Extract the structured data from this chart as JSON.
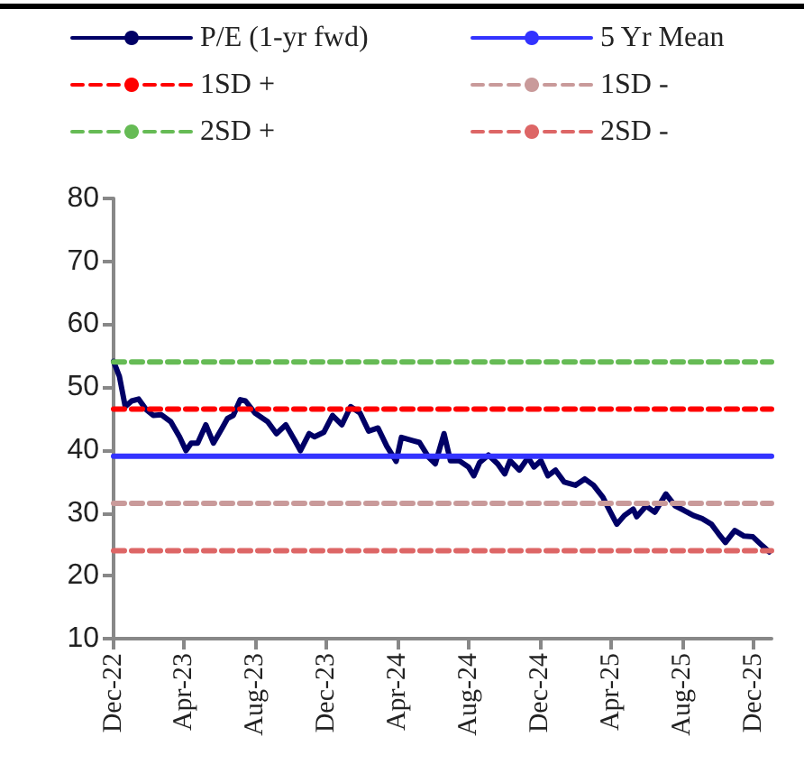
{
  "chart_data": {
    "type": "line",
    "legend": "top",
    "marker": "none",
    "grid": false,
    "xlim": [
      "2022-12-01",
      "2026-01-01"
    ],
    "xticks": [
      {
        "value": "2022-12-01",
        "label": "Dec-22"
      },
      {
        "value": "2023-04-01",
        "label": "Apr-23"
      },
      {
        "value": "2023-08-01",
        "label": "Aug-23"
      },
      {
        "value": "2023-12-01",
        "label": "Dec-23"
      },
      {
        "value": "2024-04-01",
        "label": "Apr-24"
      },
      {
        "value": "2024-08-01",
        "label": "Aug-24"
      },
      {
        "value": "2024-12-01",
        "label": "Dec-24"
      },
      {
        "value": "2025-04-01",
        "label": "Apr-25"
      },
      {
        "value": "2025-08-01",
        "label": "Aug-25"
      },
      {
        "value": "2025-12-01",
        "label": "Dec-25"
      }
    ],
    "ylim": [
      10,
      80
    ],
    "yticks": [
      10,
      20,
      30,
      40,
      50,
      60,
      70,
      80
    ],
    "series": [
      {
        "name": "P/E (1-yr fwd)",
        "color": "#000066",
        "line_style": "solid",
        "x": [
          "2022-12-01",
          "2022-12-11",
          "2022-12-21",
          "2023-01-01",
          "2023-01-13",
          "2023-01-26",
          "2023-02-07",
          "2023-02-21",
          "2023-03-09",
          "2023-03-24",
          "2023-04-04",
          "2023-04-13",
          "2023-04-24",
          "2023-05-08",
          "2023-05-21",
          "2023-06-05",
          "2023-06-14",
          "2023-06-24",
          "2023-07-06",
          "2023-07-15",
          "2023-07-31",
          "2023-08-22",
          "2023-09-06",
          "2023-09-22",
          "2023-10-07",
          "2023-10-17",
          "2023-11-01",
          "2023-11-10",
          "2023-11-26",
          "2023-12-11",
          "2023-12-27",
          "2024-01-11",
          "2024-01-27",
          "2024-02-11",
          "2024-02-27",
          "2024-03-13",
          "2024-03-29",
          "2024-04-07",
          "2024-04-26",
          "2024-05-08",
          "2024-05-24",
          "2024-06-04",
          "2024-06-19",
          "2024-06-30",
          "2024-07-15",
          "2024-07-31",
          "2024-08-09",
          "2024-08-19",
          "2024-09-03",
          "2024-09-19",
          "2024-10-01",
          "2024-10-10",
          "2024-10-26",
          "2024-11-10",
          "2024-11-20",
          "2024-12-02",
          "2024-12-14",
          "2024-12-27",
          "2025-01-11",
          "2025-01-30",
          "2025-02-15",
          "2025-03-02",
          "2025-03-18",
          "2025-03-30",
          "2025-04-11",
          "2025-04-24",
          "2025-05-09",
          "2025-05-15",
          "2025-05-31",
          "2025-06-15",
          "2025-07-04",
          "2025-07-20",
          "2025-08-04",
          "2025-08-20",
          "2025-09-04",
          "2025-09-20",
          "2025-10-02",
          "2025-10-14",
          "2025-10-30",
          "2025-11-15",
          "2025-11-30",
          "2025-12-16",
          "2025-12-28"
        ],
        "values": [
          54.1,
          51.7,
          46.9,
          47.8,
          48.1,
          46.4,
          45.5,
          45.6,
          44.5,
          42.1,
          39.9,
          41.1,
          41.1,
          44.0,
          41.1,
          43.5,
          45.0,
          45.5,
          48.0,
          47.8,
          45.9,
          44.5,
          42.6,
          44.0,
          41.6,
          39.9,
          42.6,
          42.1,
          42.8,
          45.5,
          44.0,
          46.9,
          45.9,
          43.0,
          43.5,
          40.6,
          38.2,
          42.0,
          41.5,
          41.2,
          38.8,
          37.8,
          42.6,
          38.3,
          38.3,
          37.3,
          35.9,
          38.0,
          39.2,
          37.8,
          36.2,
          38.3,
          36.8,
          38.8,
          37.3,
          38.3,
          35.9,
          36.8,
          34.9,
          34.4,
          35.4,
          34.4,
          32.5,
          30.3,
          28.2,
          29.6,
          30.6,
          29.4,
          31.1,
          30.1,
          33.0,
          31.1,
          30.4,
          29.6,
          29.1,
          28.2,
          26.7,
          25.3,
          27.2,
          26.3,
          26.2,
          24.8,
          23.8
        ]
      },
      {
        "name": "5 Yr Mean",
        "color": "#3333ff",
        "line_style": "solid",
        "x": [
          "2022-12-01",
          "2026-01-01"
        ],
        "values": [
          39,
          39
        ]
      },
      {
        "name": "1SD +",
        "color": "#ff0000",
        "line_style": "dashed",
        "x": [
          "2022-12-01",
          "2026-01-01"
        ],
        "values": [
          46.5,
          46.5
        ]
      },
      {
        "name": "1SD -",
        "color": "#c99a9a",
        "line_style": "dashed",
        "x": [
          "2022-12-01",
          "2026-01-01"
        ],
        "values": [
          31.5,
          31.5
        ]
      },
      {
        "name": "2SD +",
        "color": "#66bb55",
        "line_style": "dashed",
        "x": [
          "2022-12-01",
          "2026-01-01"
        ],
        "values": [
          54,
          54
        ]
      },
      {
        "name": "2SD -",
        "color": "#dd6666",
        "line_style": "dashed",
        "x": [
          "2022-12-01",
          "2026-01-01"
        ],
        "values": [
          24,
          24
        ]
      }
    ]
  }
}
